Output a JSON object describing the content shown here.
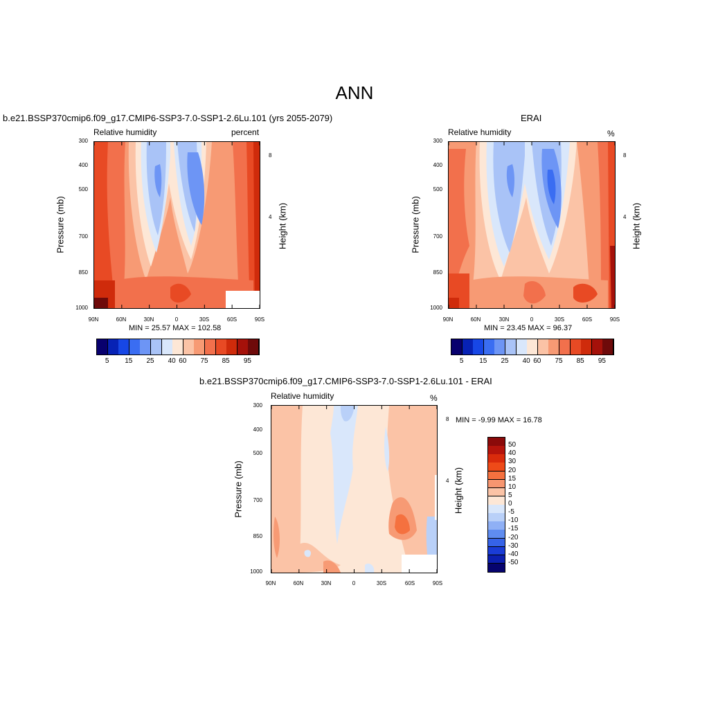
{
  "main_title": "ANN",
  "panels": [
    {
      "title": "b.e21.BSSP370cmip6.f09_g17.CMIP6-SSP3-7.0-SSP1-2.6Lu.101 (yrs 2055-2079)",
      "subtitle_left": "Relative humidity",
      "subtitle_right": "percent",
      "ylabel": "Pressure (mb)",
      "ylabel_right": "Height (km)",
      "stats": "MIN =  25.57  MAX = 102.58"
    },
    {
      "title": "ERAI",
      "subtitle_left": "Relative humidity",
      "subtitle_right": "%",
      "ylabel": "Pressure (mb)",
      "ylabel_right": "Height (km)",
      "stats": "MIN =  23.45  MAX =  96.37"
    },
    {
      "title": "b.e21.BSSP370cmip6.f09_g17.CMIP6-SSP3-7.0-SSP1-2.6Lu.101 - ERAI",
      "subtitle_left": "Relative humidity",
      "subtitle_right": "%",
      "ylabel": "Pressure (mb)",
      "ylabel_right": "Height (km)",
      "stats": "MIN =  -9.99  MAX =  16.78"
    }
  ],
  "x_ticks": [
    "90N",
    "60N",
    "30N",
    "0",
    "30S",
    "60S",
    "90S"
  ],
  "pressure_ticks": [
    "300",
    "400",
    "500",
    "700",
    "850",
    "1000"
  ],
  "height_ticks": [
    "8",
    "4"
  ],
  "colorbar_abs": {
    "labels": [
      "5",
      "15",
      "25",
      "40",
      "60",
      "75",
      "85",
      "95"
    ],
    "colors": [
      "#08006e",
      "#0722b5",
      "#1747e6",
      "#3a6df2",
      "#6d95f5",
      "#a9c3f7",
      "#d9e7fb",
      "#fde7d6",
      "#fbc3a6",
      "#f79a74",
      "#f2704c",
      "#e84a24",
      "#cf2b0b",
      "#a5110a",
      "#6e0a0a"
    ]
  },
  "colorbar_diff": {
    "labels": [
      "50",
      "40",
      "30",
      "20",
      "15",
      "10",
      "5",
      "0",
      "-5",
      "-10",
      "-15",
      "-20",
      "-30",
      "-40",
      "-50"
    ],
    "colors": [
      "#8b0a0a",
      "#b5140c",
      "#d92b0c",
      "#ee4a18",
      "#f5713f",
      "#f79670",
      "#fbc3a6",
      "#fde7d6",
      "#d9e7fb",
      "#b9d0f8",
      "#8fb0f5",
      "#5f8cf0",
      "#3663e8",
      "#1a3cd6",
      "#0c1fb0",
      "#06036e"
    ]
  },
  "chart_data": [
    {
      "type": "heatmap",
      "title": "b.e21.BSSP370cmip6.f09_g17.CMIP6-SSP3-7.0-SSP1-2.6Lu.101 (yrs 2055-2079)",
      "xlabel": "",
      "ylabel": "Pressure (mb)",
      "x": [
        "90N",
        "60N",
        "30N",
        "0",
        "30S",
        "60S",
        "90S"
      ],
      "y": [
        1000,
        850,
        700,
        500,
        400,
        300
      ],
      "units": "percent",
      "min": 25.57,
      "max": 102.58,
      "values": [
        [
          92,
          85,
          80,
          85,
          82,
          80,
          95
        ],
        [
          88,
          78,
          62,
          70,
          70,
          75,
          92
        ],
        [
          82,
          70,
          45,
          55,
          45,
          65,
          88
        ],
        [
          78,
          62,
          32,
          48,
          30,
          60,
          85
        ],
        [
          80,
          62,
          35,
          55,
          35,
          62,
          88
        ],
        [
          75,
          60,
          45,
          55,
          45,
          60,
          85
        ]
      ]
    },
    {
      "type": "heatmap",
      "title": "ERAI",
      "xlabel": "",
      "ylabel": "Pressure (mb)",
      "x": [
        "90N",
        "60N",
        "30N",
        "0",
        "30S",
        "60S",
        "90S"
      ],
      "y": [
        1000,
        850,
        700,
        500,
        400,
        300
      ],
      "units": "%",
      "min": 23.45,
      "max": 96.37,
      "values": [
        [
          85,
          82,
          78,
          85,
          80,
          82,
          92
        ],
        [
          80,
          75,
          60,
          72,
          62,
          72,
          90
        ],
        [
          72,
          65,
          42,
          60,
          42,
          62,
          85
        ],
        [
          68,
          62,
          32,
          55,
          25,
          58,
          80
        ],
        [
          72,
          62,
          35,
          58,
          32,
          60,
          82
        ],
        [
          70,
          60,
          45,
          55,
          45,
          58,
          78
        ]
      ]
    },
    {
      "type": "heatmap",
      "title": "b.e21.BSSP370cmip6.f09_g17.CMIP6-SSP3-7.0-SSP1-2.6Lu.101 - ERAI",
      "xlabel": "",
      "ylabel": "Pressure (mb)",
      "x": [
        "90N",
        "60N",
        "30N",
        "0",
        "30S",
        "60S",
        "90S"
      ],
      "y": [
        1000,
        850,
        700,
        500,
        400,
        300
      ],
      "units": "%",
      "min": -9.99,
      "max": 16.78,
      "values": [
        [
          6,
          4,
          2,
          0,
          2,
          4,
          3
        ],
        [
          8,
          4,
          2,
          -2,
          6,
          10,
          -3
        ],
        [
          6,
          3,
          2,
          -3,
          2,
          6,
          3
        ],
        [
          7,
          2,
          0,
          -4,
          4,
          6,
          5
        ],
        [
          7,
          1,
          1,
          -3,
          4,
          3,
          6
        ],
        [
          6,
          1,
          0,
          -6,
          1,
          2,
          7
        ]
      ]
    }
  ]
}
